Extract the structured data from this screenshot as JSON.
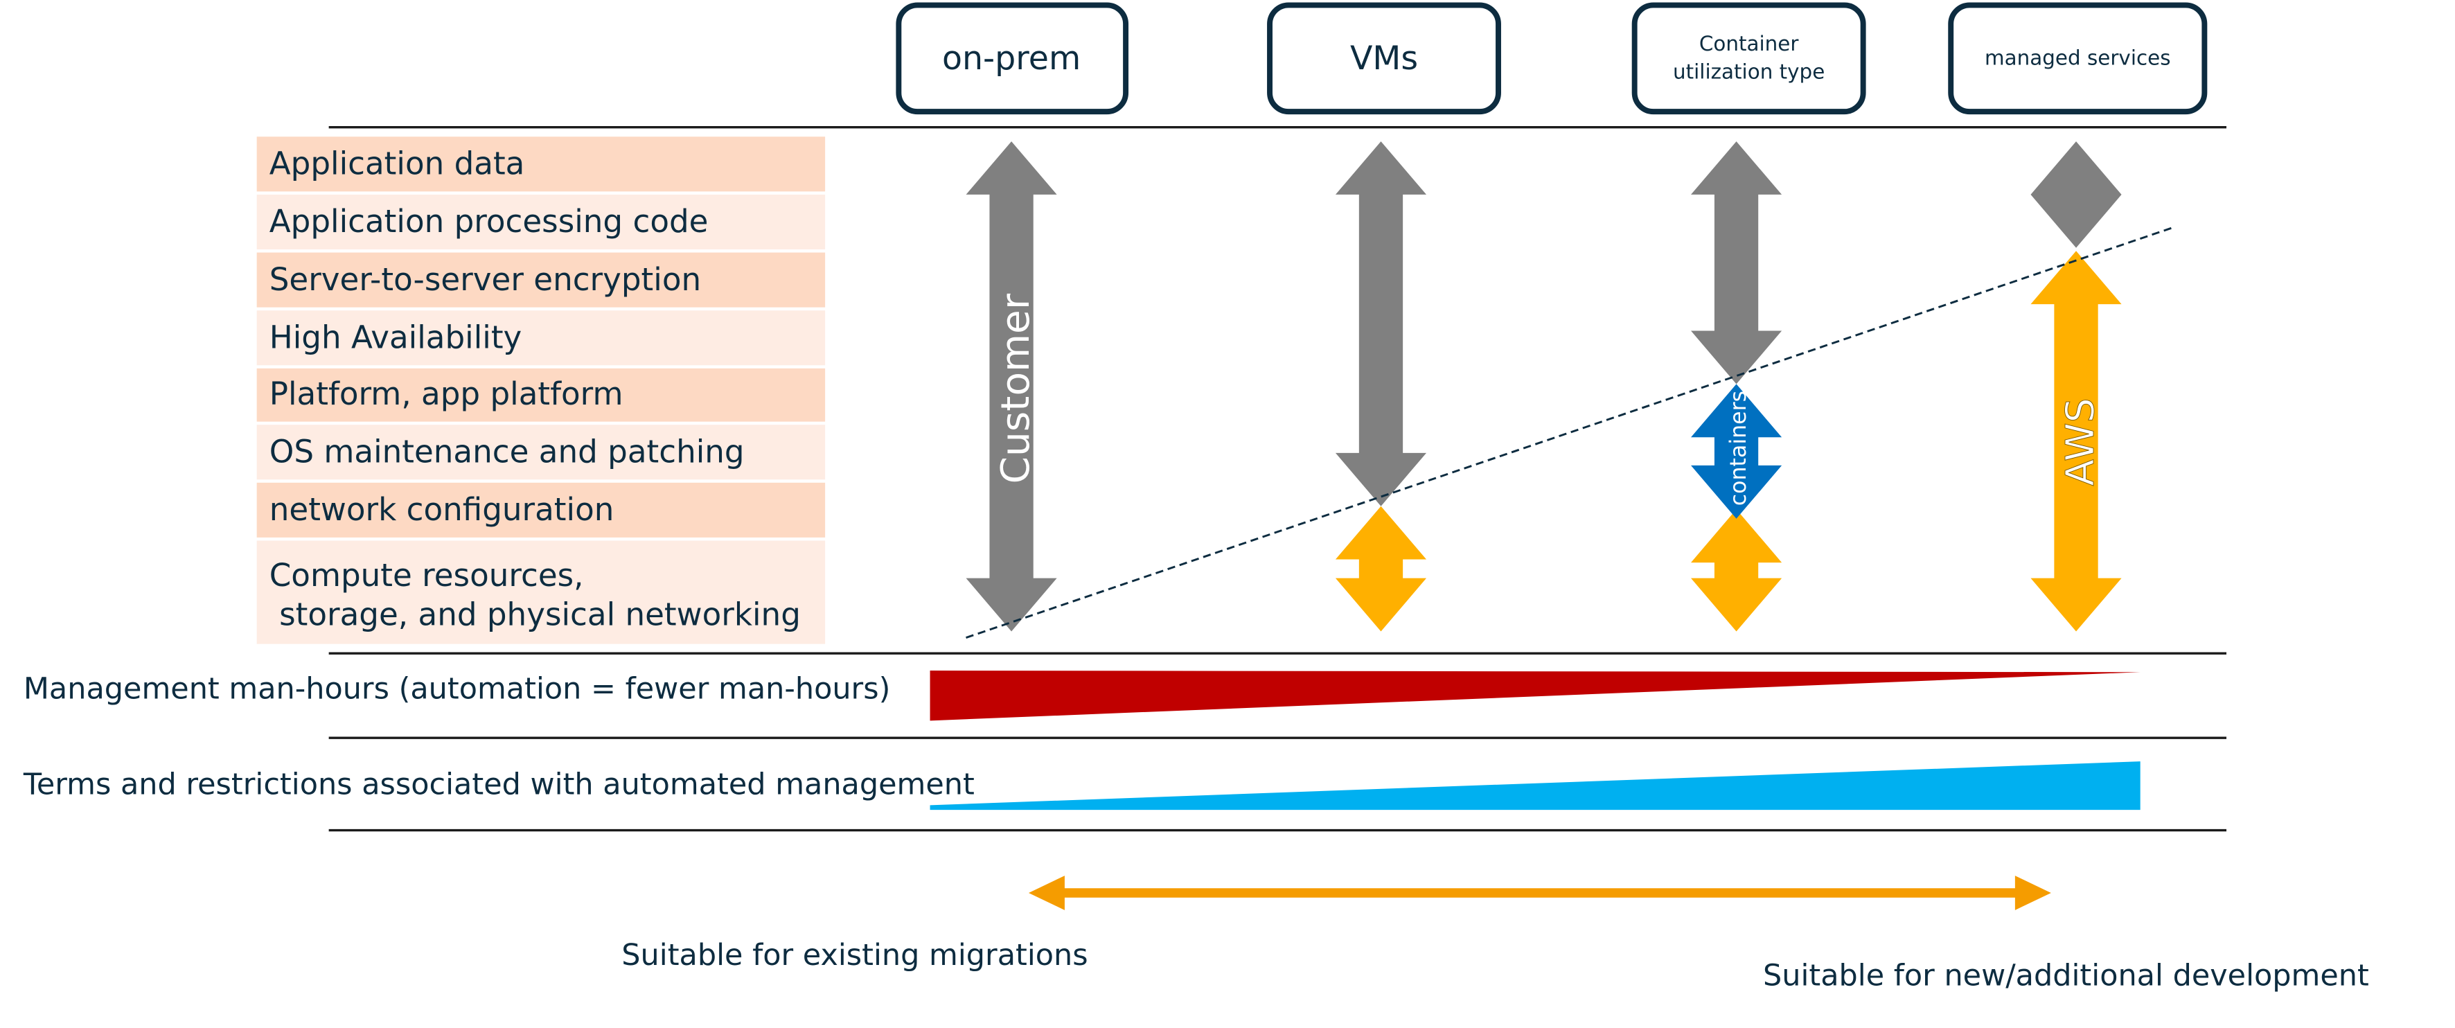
{
  "columns": [
    {
      "label": "on-prem"
    },
    {
      "label": "VMs"
    },
    {
      "label_line1": "Container",
      "label_line2": "utilization type"
    },
    {
      "label": "managed services"
    }
  ],
  "layers": [
    "Application data",
    "Application processing code",
    "Server-to-server encryption",
    "High Availability",
    "Platform, app platform",
    "OS maintenance and patching",
    "network configuration",
    "Compute resources,",
    " storage, and physical networking"
  ],
  "arrow_labels": {
    "customer": "Customer",
    "containers": "containers",
    "aws": "AWS"
  },
  "metrics": {
    "management": "Management man-hours (automation = fewer man-hours)",
    "terms": "Terms and restrictions associated with automated management"
  },
  "spectrum": {
    "left": "Suitable for existing migrations",
    "right": "Suitable for new/additional development"
  },
  "colors": {
    "customer": "#808080",
    "aws": "#ffb000",
    "containers": "#0070c0",
    "management": "#c00000",
    "terms": "#00b0f0",
    "spectrum": "#f59c00",
    "row_dark": "#fdd9c3",
    "row_light": "#feece3",
    "outline": "#0d2c40"
  }
}
